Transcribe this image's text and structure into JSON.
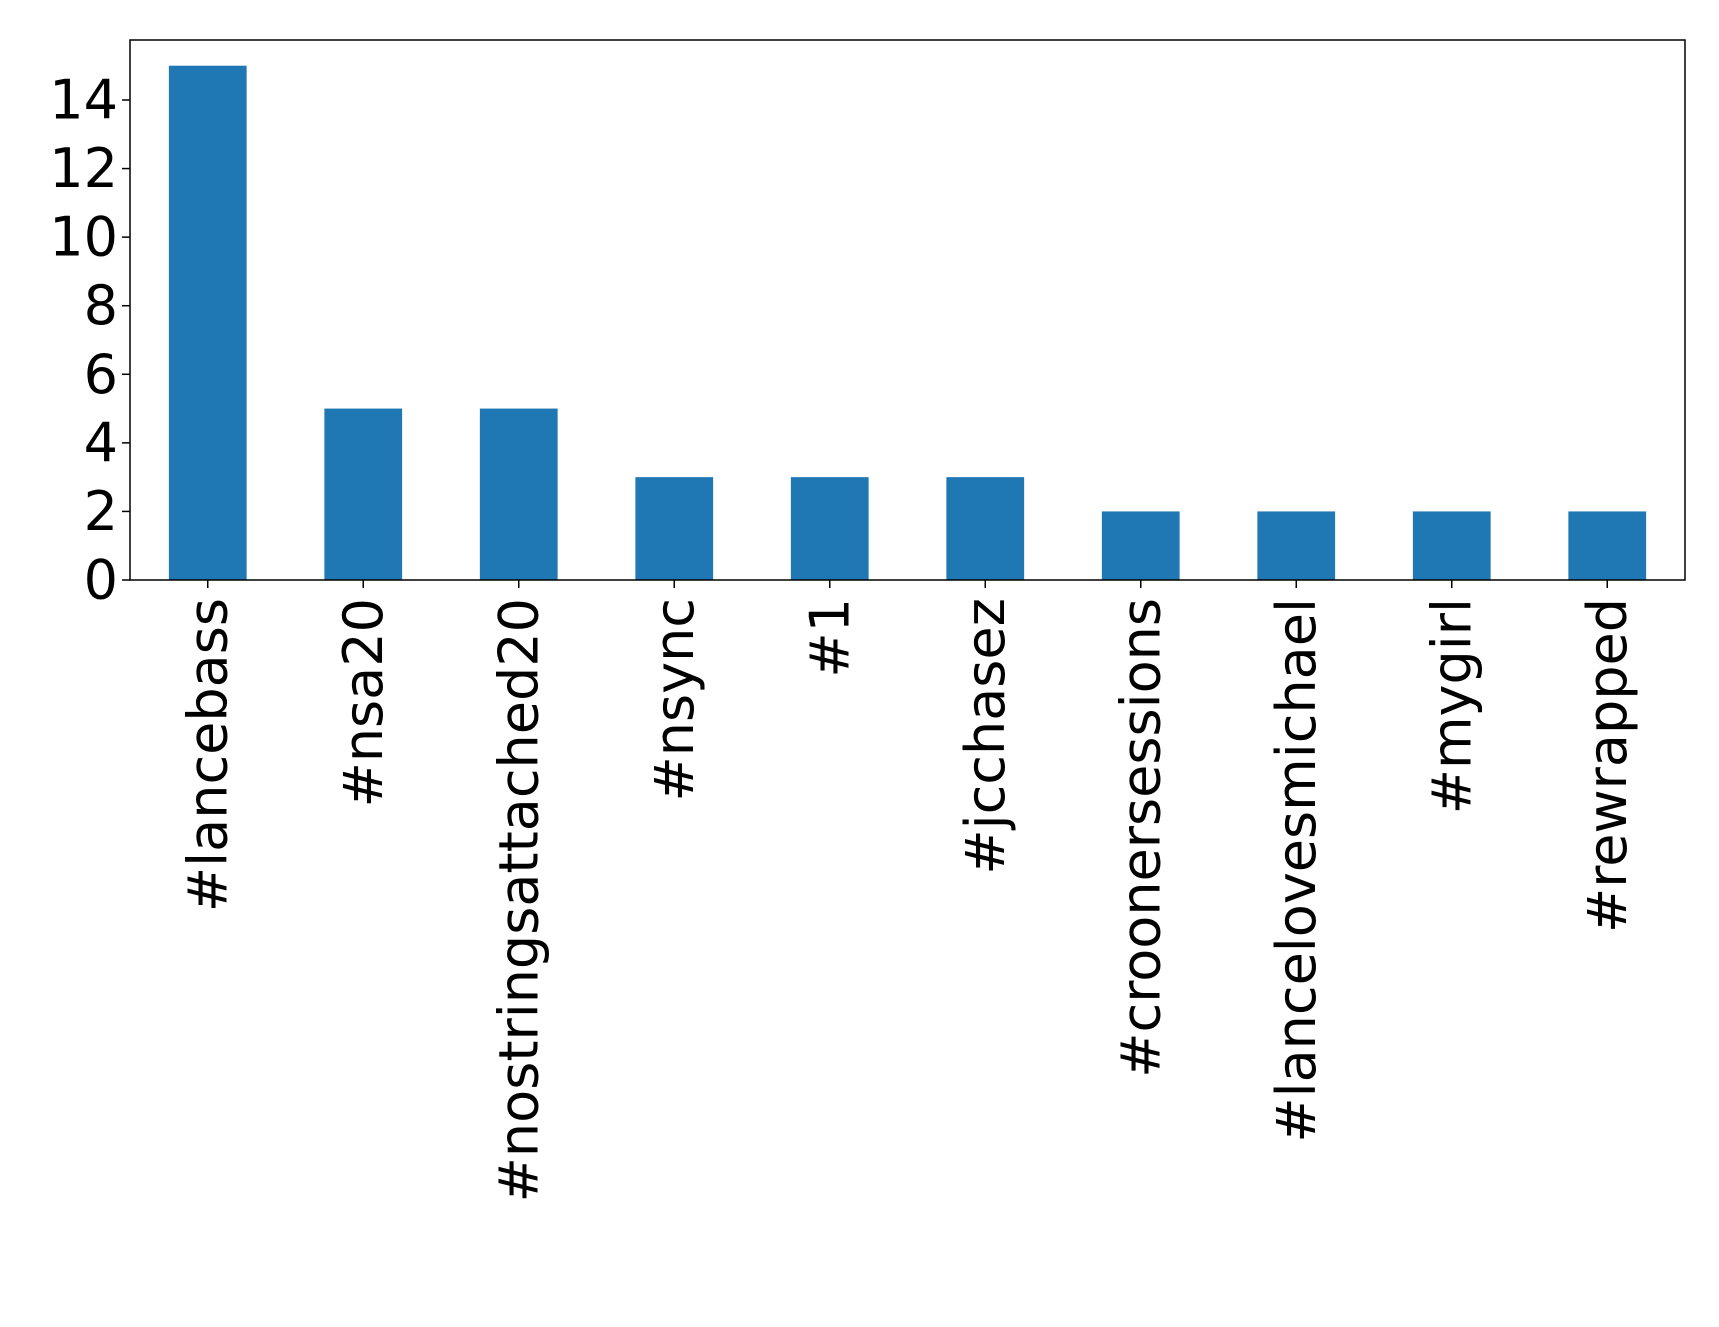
{
  "chart_data": {
    "type": "bar",
    "title": "",
    "xlabel": "",
    "ylabel": "",
    "categories": [
      "#lancebass",
      "#nsa20",
      "#nostringsattached20",
      "#nsync",
      "#1",
      "#jcchasez",
      "#croonersessions",
      "#lancelovesmichael",
      "#mygirl",
      "#rewrapped"
    ],
    "values": [
      15,
      5,
      5,
      3,
      3,
      3,
      2,
      2,
      2,
      2
    ],
    "ylim": [
      0,
      15.75
    ],
    "yticks": [
      0,
      2,
      4,
      6,
      8,
      10,
      12,
      14
    ],
    "bar_color": "#1f77b4",
    "grid": false,
    "legend": "none"
  }
}
